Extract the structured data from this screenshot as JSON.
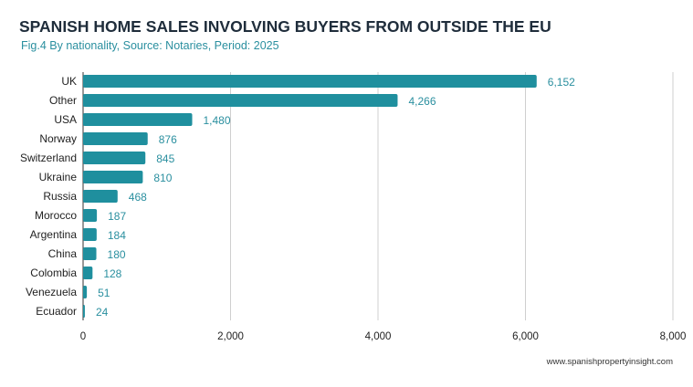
{
  "chart_data": {
    "type": "bar",
    "orientation": "horizontal",
    "title": "SPANISH HOME SALES INVOLVING BUYERS FROM OUTSIDE THE EU",
    "subtitle": "Fig.4 By nationality, Source: Notaries, Period: 2025",
    "categories": [
      "UK",
      "Other",
      "USA",
      "Norway",
      "Switzerland",
      "Ukraine",
      "Russia",
      "Morocco",
      "Argentina",
      "China",
      "Colombia",
      "Venezuela",
      "Ecuador"
    ],
    "values": [
      6152,
      4266,
      1480,
      876,
      845,
      810,
      468,
      187,
      184,
      180,
      128,
      51,
      24
    ],
    "value_labels": [
      "6,152",
      "4,266",
      "1,480",
      "876",
      "845",
      "810",
      "468",
      "187",
      "184",
      "180",
      "128",
      "51",
      "24"
    ],
    "xlim": [
      0,
      8000
    ],
    "xticks": [
      0,
      2000,
      4000,
      6000,
      8000
    ],
    "xtick_labels": [
      "0",
      "2,000",
      "4,000",
      "6,000",
      "8,000"
    ],
    "grid": true,
    "bar_color": "#1f8f9e"
  },
  "footer": "www.spanishpropertyinsight.com"
}
